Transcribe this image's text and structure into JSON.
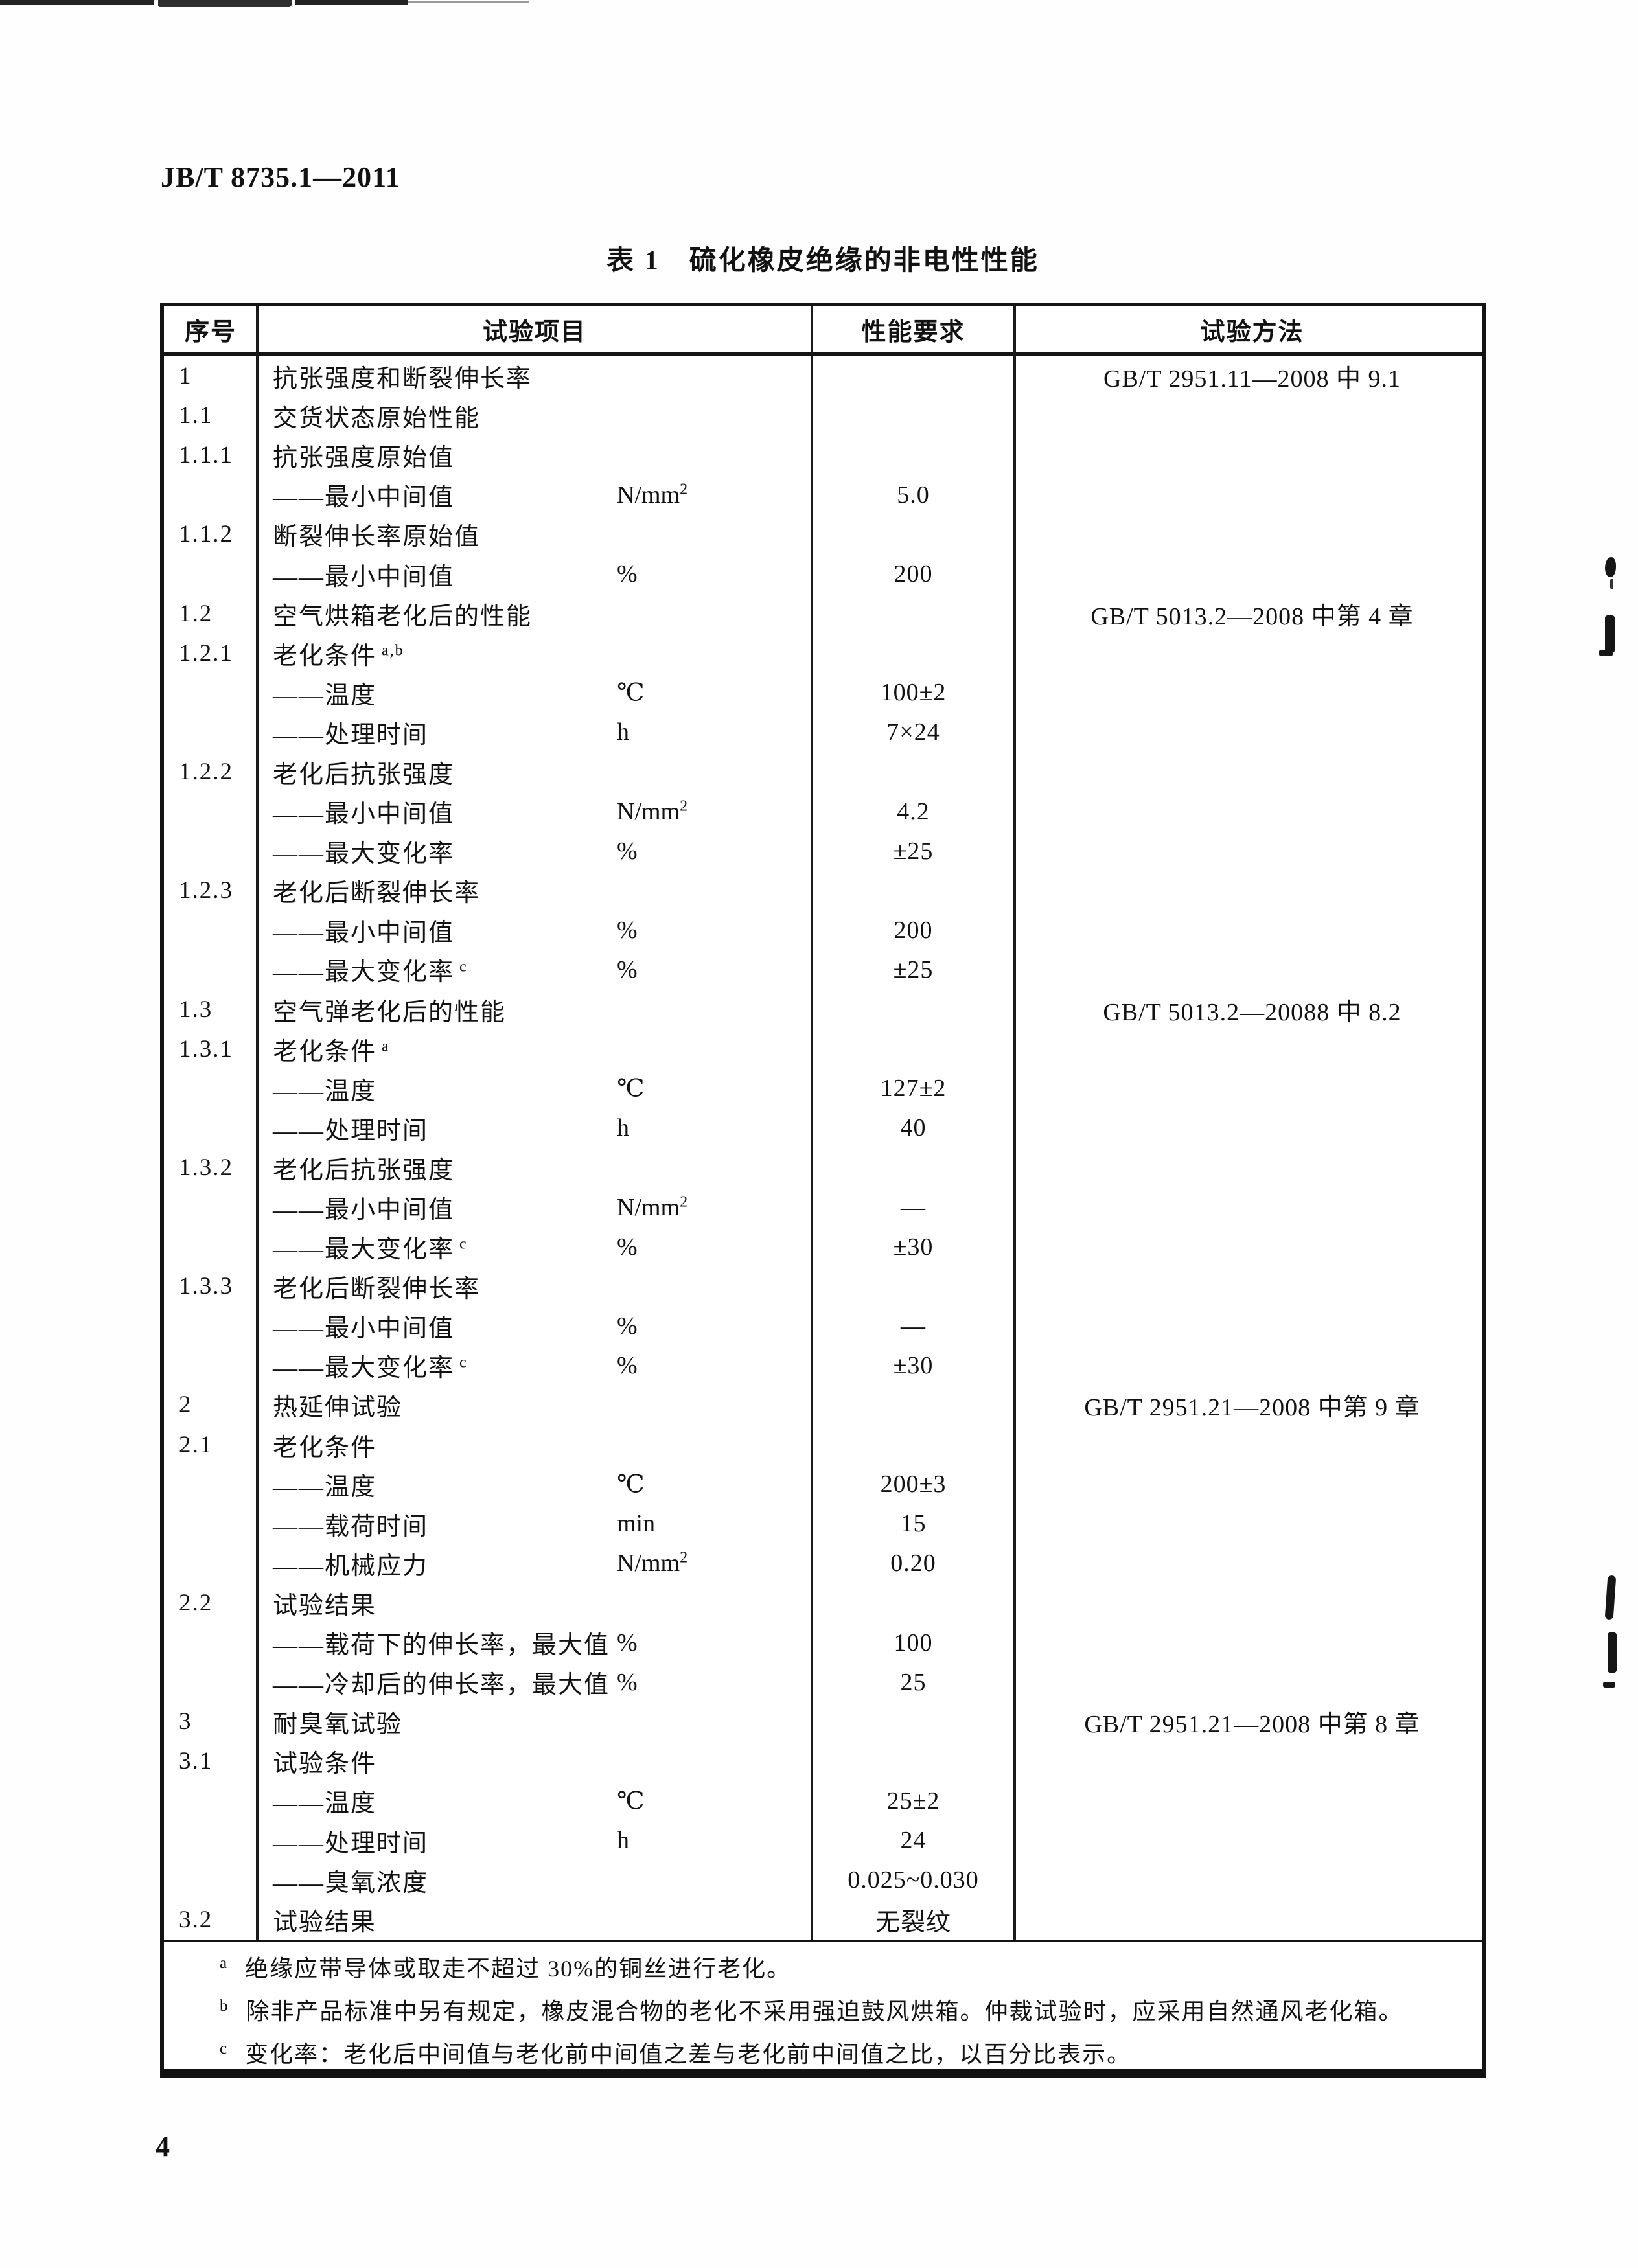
{
  "doc": {
    "standard_no": "JB/T 8735.1—2011",
    "page_number": "4"
  },
  "table": {
    "title": "表 1　硫化橡皮绝缘的非电性性能",
    "columns": [
      "序号",
      "试验项目",
      "性能要求",
      "试验方法"
    ],
    "dash_prefix": "——",
    "rows": [
      {
        "no": "1",
        "label": "抗张强度和断裂伸长率",
        "method": "GB/T 2951.11—2008 中 9.1"
      },
      {
        "no": "1.1",
        "label": "交货状态原始性能"
      },
      {
        "no": "1.1.1",
        "label": "抗张强度原始值"
      },
      {
        "dash": true,
        "label": "最小中间值",
        "unit": "N/mm",
        "usup": "2",
        "value": "5.0"
      },
      {
        "no": "1.1.2",
        "label": "断裂伸长率原始值"
      },
      {
        "dash": true,
        "label": "最小中间值",
        "unit": "%",
        "value": "200"
      },
      {
        "no": "1.2",
        "label": "空气烘箱老化后的性能",
        "method": "GB/T 5013.2—2008 中第 4 章"
      },
      {
        "no": "1.2.1",
        "label": "老化条件",
        "sup": "a,b"
      },
      {
        "dash": true,
        "label": "温度",
        "unit": "℃",
        "value": "100±2"
      },
      {
        "dash": true,
        "label": "处理时间",
        "unit": "h",
        "value": "7×24"
      },
      {
        "no": "1.2.2",
        "label": "老化后抗张强度"
      },
      {
        "dash": true,
        "label": "最小中间值",
        "unit": "N/mm",
        "usup": "2",
        "value": "4.2"
      },
      {
        "dash": true,
        "label": "最大变化率",
        "unit": "%",
        "value": "±25"
      },
      {
        "no": "1.2.3",
        "label": "老化后断裂伸长率"
      },
      {
        "dash": true,
        "label": "最小中间值",
        "unit": "%",
        "value": "200"
      },
      {
        "dash": true,
        "label": "最大变化率",
        "sup": "c",
        "unit": "%",
        "value": "±25"
      },
      {
        "no": "1.3",
        "label": "空气弹老化后的性能",
        "method": "GB/T 5013.2—20088 中 8.2"
      },
      {
        "no": "1.3.1",
        "label": "老化条件",
        "sup": "a"
      },
      {
        "dash": true,
        "label": "温度",
        "unit": "℃",
        "value": "127±2"
      },
      {
        "dash": true,
        "label": "处理时间",
        "unit": "h",
        "value": "40"
      },
      {
        "no": "1.3.2",
        "label": "老化后抗张强度"
      },
      {
        "dash": true,
        "label": "最小中间值",
        "unit": "N/mm",
        "usup": "2",
        "value": "—"
      },
      {
        "dash": true,
        "label": "最大变化率",
        "sup": "c",
        "unit": "%",
        "value": "±30"
      },
      {
        "no": "1.3.3",
        "label": "老化后断裂伸长率"
      },
      {
        "dash": true,
        "label": "最小中间值",
        "unit": "%",
        "value": "—"
      },
      {
        "dash": true,
        "label": "最大变化率",
        "sup": "c",
        "unit": "%",
        "value": "±30"
      },
      {
        "no": "2",
        "label": "热延伸试验",
        "method": "GB/T 2951.21—2008 中第 9 章"
      },
      {
        "no": "2.1",
        "label": "老化条件"
      },
      {
        "dash": true,
        "label": "温度",
        "unit": "℃",
        "value": "200±3"
      },
      {
        "dash": true,
        "label": "载荷时间",
        "unit": "min",
        "value": "15"
      },
      {
        "dash": true,
        "label": "机械应力",
        "unit": "N/mm",
        "usup": "2",
        "value": "0.20"
      },
      {
        "no": "2.2",
        "label": "试验结果"
      },
      {
        "dash": true,
        "label": "载荷下的伸长率，最大值",
        "unit": "%",
        "value": "100"
      },
      {
        "dash": true,
        "label": "冷却后的伸长率，最大值",
        "unit": "%",
        "value": "25"
      },
      {
        "no": "3",
        "label": "耐臭氧试验",
        "method": "GB/T 2951.21—2008 中第 8 章"
      },
      {
        "no": "3.1",
        "label": "试验条件"
      },
      {
        "dash": true,
        "label": "温度",
        "unit": "℃",
        "value": "25±2"
      },
      {
        "dash": true,
        "label": "处理时间",
        "unit": "h",
        "value": "24"
      },
      {
        "dash": true,
        "label": "臭氧浓度",
        "value": "0.025~0.030"
      },
      {
        "no": "3.2",
        "label": "试验结果",
        "value": "无裂纹"
      }
    ],
    "footnotes": [
      {
        "mark": "a",
        "text": "绝缘应带导体或取走不超过 30%的铜丝进行老化。"
      },
      {
        "mark": "b",
        "text": "除非产品标准中另有规定，橡皮混合物的老化不采用强迫鼓风烘箱。仲裁试验时，应采用自然通风老化箱。"
      },
      {
        "mark": "c",
        "text": "变化率：老化后中间值与老化前中间值之差与老化前中间值之比，以百分比表示。"
      }
    ]
  }
}
